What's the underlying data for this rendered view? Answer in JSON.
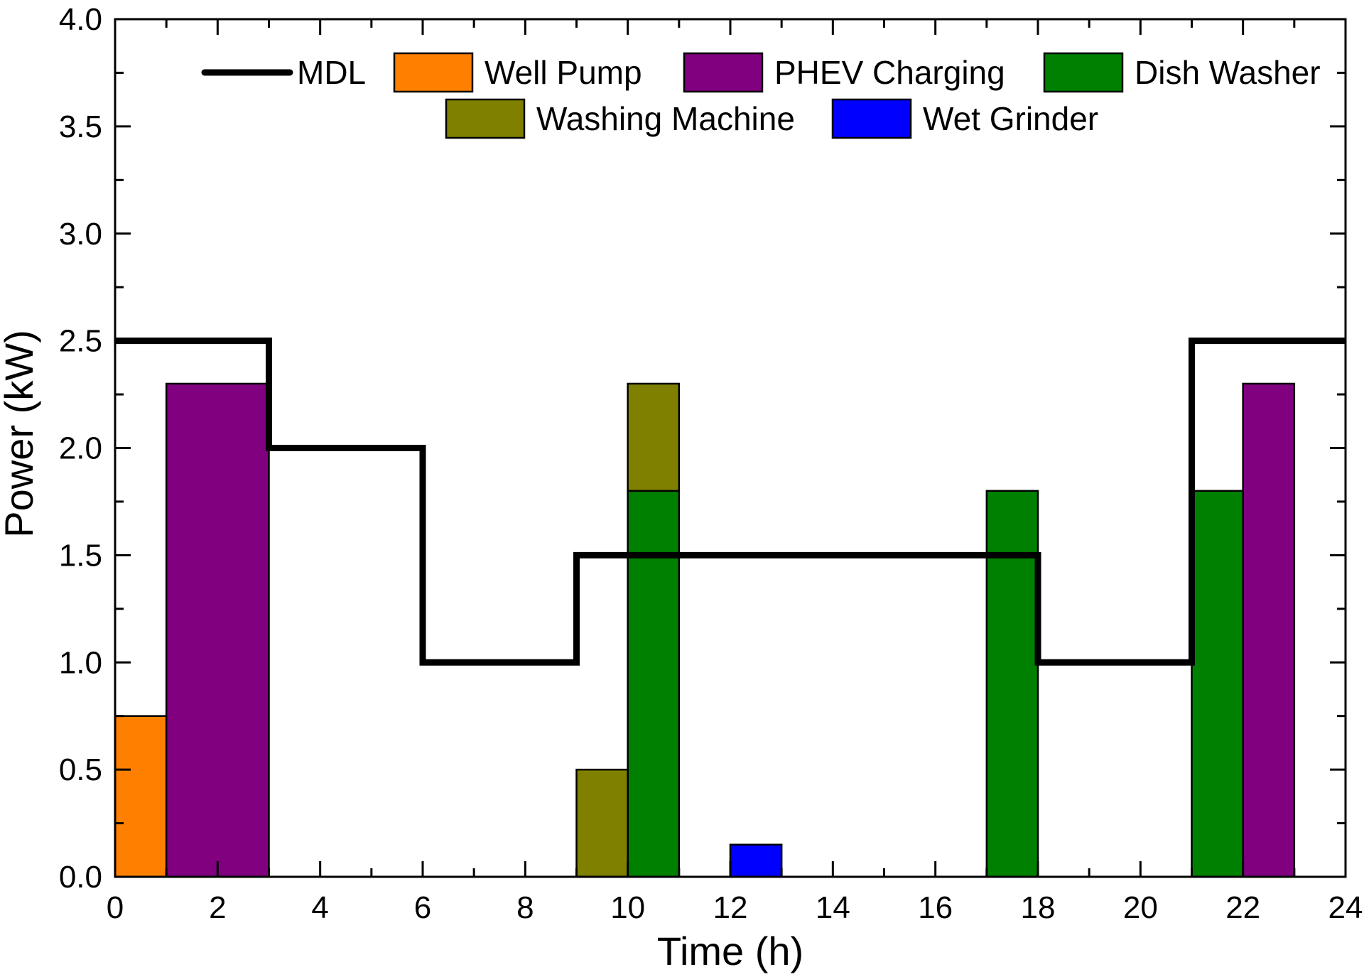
{
  "chart_data": {
    "type": "bar",
    "title": "",
    "xlabel": "Time (h)",
    "ylabel": "Power (kW)",
    "xlim": [
      0,
      24
    ],
    "ylim": [
      0,
      4.0
    ],
    "xticks": [
      "0",
      "2",
      "4",
      "6",
      "8",
      "10",
      "12",
      "14",
      "16",
      "18",
      "20",
      "22",
      "24"
    ],
    "yticks": [
      "0.0",
      "0.5",
      "1.0",
      "1.5",
      "2.0",
      "2.5",
      "3.0",
      "3.5",
      "4.0"
    ],
    "legend_position": "top",
    "series": [
      {
        "name": "Well Pump",
        "color": "#ff8000",
        "bars": [
          {
            "start": 0,
            "end": 1,
            "base": 0,
            "value": 0.75
          }
        ]
      },
      {
        "name": "PHEV Charging",
        "color": "#800080",
        "bars": [
          {
            "start": 1,
            "end": 3,
            "base": 0,
            "value": 2.3
          },
          {
            "start": 22,
            "end": 23,
            "base": 0,
            "value": 2.3
          }
        ]
      },
      {
        "name": "Dish Washer",
        "color": "#008000",
        "bars": [
          {
            "start": 10,
            "end": 11,
            "base": 0,
            "value": 1.8
          },
          {
            "start": 17,
            "end": 18,
            "base": 0,
            "value": 1.8
          },
          {
            "start": 21,
            "end": 22,
            "base": 0,
            "value": 1.8
          }
        ]
      },
      {
        "name": "Washing Machine",
        "color": "#808000",
        "bars": [
          {
            "start": 9,
            "end": 10,
            "base": 0,
            "value": 0.5
          },
          {
            "start": 10,
            "end": 11,
            "base": 1.8,
            "value": 0.5
          }
        ]
      },
      {
        "name": "Wet Grinder",
        "color": "#0000ff",
        "bars": [
          {
            "start": 12,
            "end": 13,
            "base": 0,
            "value": 0.15
          }
        ]
      }
    ],
    "line": {
      "name": "MDL",
      "color": "#000000",
      "x": [
        0,
        3,
        3,
        6,
        6,
        9,
        9,
        18,
        18,
        21,
        21,
        24
      ],
      "y": [
        2.5,
        2.5,
        2.0,
        2.0,
        1.0,
        1.0,
        1.5,
        1.5,
        1.0,
        1.0,
        2.5,
        2.5
      ]
    },
    "legend": [
      {
        "label": "MDL",
        "kind": "line",
        "color": "#000000"
      },
      {
        "label": "Well Pump",
        "kind": "box",
        "color": "#ff8000"
      },
      {
        "label": "PHEV Charging",
        "kind": "box",
        "color": "#800080"
      },
      {
        "label": "Dish Washer",
        "kind": "box",
        "color": "#008000"
      },
      {
        "label": "Washing Machine",
        "kind": "box",
        "color": "#808000"
      },
      {
        "label": "Wet Grinder",
        "kind": "box",
        "color": "#0000ff"
      }
    ]
  }
}
